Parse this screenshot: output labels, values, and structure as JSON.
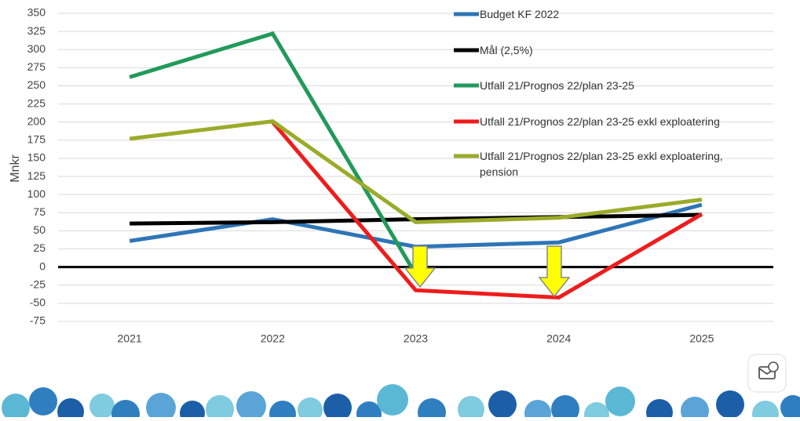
{
  "chart_data": {
    "type": "line",
    "y_label": "Mnkr",
    "categories": [
      "2021",
      "2022",
      "2023",
      "2024",
      "2025"
    ],
    "series": [
      {
        "name": "Budget KF 2022",
        "color": "#2e75b6",
        "values": [
          36,
          66,
          28,
          34,
          86
        ]
      },
      {
        "name": "Mål (2,5%)",
        "color": "#000000",
        "values": [
          60,
          62,
          66,
          69,
          72
        ]
      },
      {
        "name": "Utfall 21/Prognos 22/plan 23-25",
        "color": "#22995a",
        "values": [
          262,
          322,
          -10,
          null,
          null
        ]
      },
      {
        "name": "Utfall 21/Prognos 22/plan 23-25 exkl exploatering",
        "color": "#ee1c1c",
        "values": [
          null,
          200,
          -32,
          -42,
          73
        ]
      },
      {
        "name": "Utfall 21/Prognos 22/plan 23-25 exkl exploatering, pension",
        "color": "#9aab2a",
        "values": [
          177,
          201,
          62,
          68,
          93
        ]
      }
    ],
    "ylim": [
      -75,
      350
    ],
    "yticks": [
      -75,
      -50,
      -25,
      0,
      25,
      50,
      75,
      100,
      125,
      150,
      175,
      200,
      225,
      250,
      275,
      300,
      325,
      350
    ],
    "grid": true,
    "legend": "right"
  }
}
